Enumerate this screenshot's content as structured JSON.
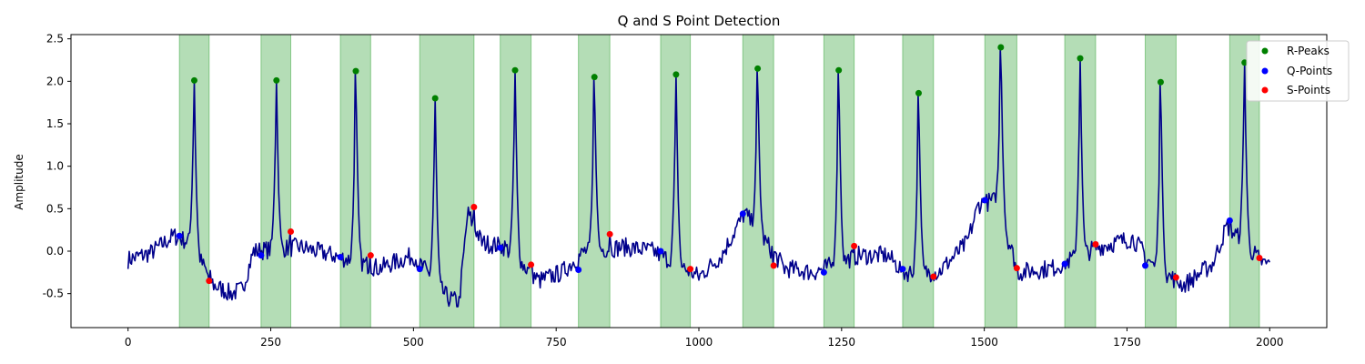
{
  "chart_data": {
    "type": "line",
    "title": "Q and S Point Detection",
    "xlabel": "",
    "ylabel": "Amplitude",
    "xlim": [
      -100,
      2100
    ],
    "ylim": [
      -0.9,
      2.55
    ],
    "xticks": [
      0,
      250,
      500,
      750,
      1000,
      1250,
      1500,
      1750,
      2000
    ],
    "yticks": [
      -0.5,
      0.0,
      0.5,
      1.0,
      1.5,
      2.0,
      2.5
    ],
    "grid": false,
    "legend_position": "top-right",
    "colors": {
      "signal": "#00008b",
      "r_peaks": "#008000",
      "q_points": "#0000ff",
      "s_points": "#ff0000",
      "qrs_region": "#4caf50"
    },
    "legend": [
      "R-Peaks",
      "Q-Points",
      "S-Points"
    ],
    "beats": [
      {
        "q": [
          90,
          0.18
        ],
        "r": [
          116,
          2.01
        ],
        "s": [
          142,
          -0.35
        ],
        "region": [
          90,
          142
        ]
      },
      {
        "q": [
          233,
          -0.05
        ],
        "r": [
          260,
          2.01
        ],
        "s": [
          285,
          0.23
        ],
        "region": [
          233,
          285
        ]
      },
      {
        "q": [
          372,
          -0.07
        ],
        "r": [
          399,
          2.12
        ],
        "s": [
          425,
          -0.05
        ],
        "region": [
          372,
          425
        ]
      },
      {
        "q": [
          511,
          -0.21
        ],
        "r": [
          538,
          1.8
        ],
        "s": [
          606,
          0.52
        ],
        "region": [
          511,
          606
        ]
      },
      {
        "q": [
          652,
          0.04
        ],
        "r": [
          678,
          2.13
        ],
        "s": [
          706,
          -0.16
        ],
        "region": [
          652,
          706
        ]
      },
      {
        "q": [
          789,
          -0.22
        ],
        "r": [
          817,
          2.05
        ],
        "s": [
          844,
          0.2
        ],
        "region": [
          789,
          844
        ]
      },
      {
        "q": [
          933,
          0.0
        ],
        "r": [
          960,
          2.08
        ],
        "s": [
          985,
          -0.21
        ],
        "region": [
          933,
          985
        ]
      },
      {
        "q": [
          1077,
          0.44
        ],
        "r": [
          1103,
          2.15
        ],
        "s": [
          1131,
          -0.17
        ],
        "region": [
          1077,
          1131
        ]
      },
      {
        "q": [
          1219,
          -0.25
        ],
        "r": [
          1245,
          2.13
        ],
        "s": [
          1272,
          0.06
        ],
        "region": [
          1219,
          1272
        ]
      },
      {
        "q": [
          1357,
          -0.21
        ],
        "r": [
          1385,
          1.86
        ],
        "s": [
          1411,
          -0.3
        ],
        "region": [
          1357,
          1411
        ]
      },
      {
        "q": [
          1501,
          0.6
        ],
        "r": [
          1529,
          2.4
        ],
        "s": [
          1557,
          -0.2
        ],
        "region": [
          1501,
          1557
        ]
      },
      {
        "q": [
          1641,
          -0.15
        ],
        "r": [
          1668,
          2.27
        ],
        "s": [
          1695,
          0.08
        ],
        "region": [
          1641,
          1695
        ]
      },
      {
        "q": [
          1782,
          -0.17
        ],
        "r": [
          1809,
          1.99
        ],
        "s": [
          1836,
          -0.31
        ],
        "region": [
          1782,
          1836
        ]
      },
      {
        "q": [
          1930,
          0.36
        ],
        "r": [
          1956,
          2.22
        ],
        "s": [
          1982,
          -0.08
        ],
        "region": [
          1930,
          1982
        ]
      }
    ],
    "signal_baseline": [
      [
        0,
        -0.1
      ],
      [
        40,
        -0.02
      ],
      [
        80,
        0.18
      ],
      [
        110,
        0.1
      ],
      [
        150,
        -0.4
      ],
      [
        180,
        -0.5
      ],
      [
        200,
        -0.45
      ],
      [
        220,
        0.0
      ],
      [
        300,
        0.05
      ],
      [
        360,
        -0.05
      ],
      [
        440,
        -0.2
      ],
      [
        500,
        -0.05
      ],
      [
        560,
        -0.55
      ],
      [
        580,
        -0.6
      ],
      [
        595,
        0.45
      ],
      [
        620,
        0.1
      ],
      [
        660,
        0.05
      ],
      [
        720,
        -0.35
      ],
      [
        760,
        -0.25
      ],
      [
        800,
        0.0
      ],
      [
        870,
        0.05
      ],
      [
        920,
        0.0
      ],
      [
        1000,
        -0.3
      ],
      [
        1040,
        -0.05
      ],
      [
        1080,
        0.45
      ],
      [
        1150,
        -0.2
      ],
      [
        1200,
        -0.25
      ],
      [
        1280,
        -0.05
      ],
      [
        1330,
        -0.05
      ],
      [
        1360,
        -0.25
      ],
      [
        1420,
        -0.25
      ],
      [
        1470,
        0.1
      ],
      [
        1490,
        0.55
      ],
      [
        1520,
        0.6
      ],
      [
        1560,
        -0.25
      ],
      [
        1620,
        -0.2
      ],
      [
        1700,
        0.05
      ],
      [
        1760,
        0.15
      ],
      [
        1800,
        -0.2
      ],
      [
        1850,
        -0.4
      ],
      [
        1900,
        -0.15
      ],
      [
        1925,
        0.3
      ],
      [
        1990,
        -0.15
      ],
      [
        2000,
        -0.15
      ]
    ]
  }
}
